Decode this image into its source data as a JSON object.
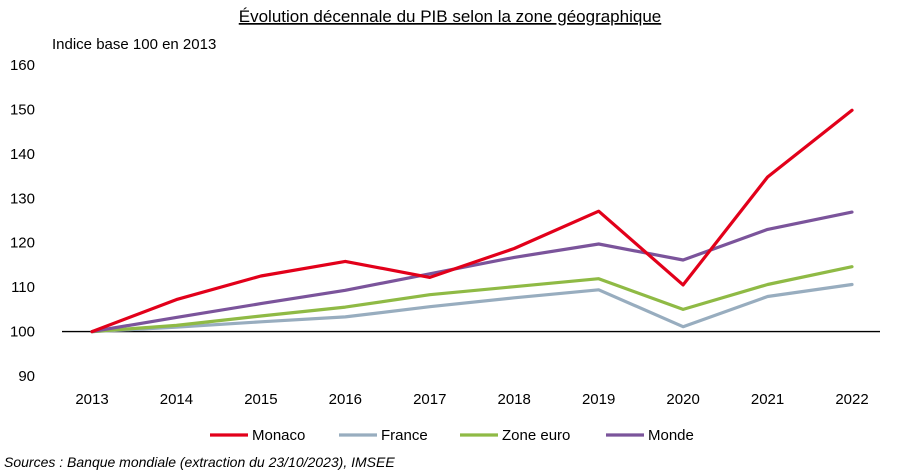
{
  "chart_data": {
    "type": "line",
    "title": "Évolution décennale du PIB selon la zone géographique",
    "subtitle": "Indice base 100 en 2013",
    "source": "Sources : Banque mondiale (extraction du 23/10/2023), IMSEE",
    "x": [
      "2013",
      "2014",
      "2015",
      "2016",
      "2017",
      "2018",
      "2019",
      "2020",
      "2021",
      "2022"
    ],
    "yticks": [
      "90",
      "100",
      "110",
      "120",
      "130",
      "140",
      "150",
      "160"
    ],
    "ylim": [
      90,
      160
    ],
    "grid": false,
    "baseline": 100,
    "legend_position": "bottom",
    "series": [
      {
        "name": "Monaco",
        "color": "#e2001a",
        "values": [
          100,
          107.2,
          112.5,
          115.8,
          112.2,
          118.7,
          127.1,
          110.5,
          134.8,
          149.8
        ]
      },
      {
        "name": "France",
        "color": "#98adbf",
        "values": [
          100,
          101.0,
          102.2,
          103.3,
          105.6,
          107.6,
          109.4,
          101.1,
          107.9,
          110.6
        ]
      },
      {
        "name": "Zone euro",
        "color": "#8fba45",
        "values": [
          100,
          101.4,
          103.5,
          105.5,
          108.3,
          110.1,
          111.9,
          105.0,
          110.6,
          114.6
        ]
      },
      {
        "name": "Monde",
        "color": "#7b549b",
        "values": [
          100,
          103.2,
          106.3,
          109.3,
          113.0,
          116.7,
          119.7,
          116.1,
          123.0,
          126.9
        ]
      }
    ]
  }
}
